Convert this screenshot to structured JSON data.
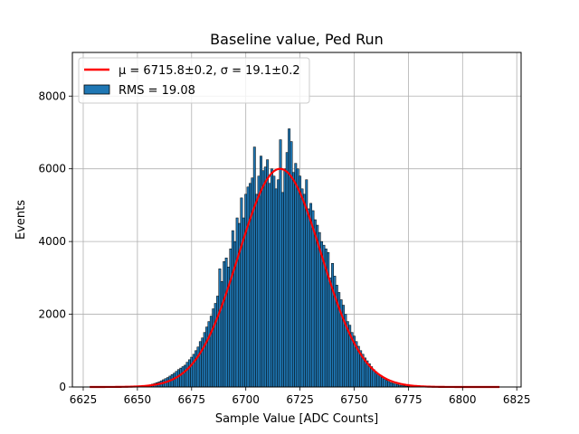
{
  "chart_data": {
    "type": "bar",
    "title": "Baseline value, Ped Run",
    "xlabel": "Sample Value [ADC Counts]",
    "ylabel": "Events",
    "xlim": [
      6620,
      6827
    ],
    "ylim": [
      0,
      9200
    ],
    "xticks": [
      6625,
      6650,
      6675,
      6700,
      6725,
      6750,
      6775,
      6800,
      6825
    ],
    "yticks": [
      0,
      2000,
      4000,
      6000,
      8000
    ],
    "grid": true,
    "legend": {
      "placement": "top-left",
      "entries": [
        {
          "label": "μ = 6715.8±0.2, σ = 19.1±0.2",
          "color": "#ff0000",
          "kind": "line"
        },
        {
          "label": "RMS = 19.08",
          "color": "#1f77b4",
          "kind": "patch"
        }
      ]
    },
    "histogram": {
      "color": "#1f77b4",
      "edge_color": "#000000",
      "bin_width": 1,
      "x": [
        6650,
        6651,
        6652,
        6653,
        6654,
        6655,
        6656,
        6657,
        6658,
        6659,
        6660,
        6661,
        6662,
        6663,
        6664,
        6665,
        6666,
        6667,
        6668,
        6669,
        6670,
        6671,
        6672,
        6673,
        6674,
        6675,
        6676,
        6677,
        6678,
        6679,
        6680,
        6681,
        6682,
        6683,
        6684,
        6685,
        6686,
        6687,
        6688,
        6689,
        6690,
        6691,
        6692,
        6693,
        6694,
        6695,
        6696,
        6697,
        6698,
        6699,
        6700,
        6701,
        6702,
        6703,
        6704,
        6705,
        6706,
        6707,
        6708,
        6709,
        6710,
        6711,
        6712,
        6713,
        6714,
        6715,
        6716,
        6717,
        6718,
        6719,
        6720,
        6721,
        6722,
        6723,
        6724,
        6725,
        6726,
        6727,
        6728,
        6729,
        6730,
        6731,
        6732,
        6733,
        6734,
        6735,
        6736,
        6737,
        6738,
        6739,
        6740,
        6741,
        6742,
        6743,
        6744,
        6745,
        6746,
        6747,
        6748,
        6749,
        6750,
        6751,
        6752,
        6753,
        6754,
        6755,
        6756,
        6757,
        6758,
        6759,
        6760,
        6761,
        6762,
        6763,
        6764,
        6765,
        6766,
        6767,
        6768,
        6769,
        6770,
        6771,
        6772,
        6773,
        6774,
        6775,
        6776,
        6777,
        6778,
        6779,
        6780
      ],
      "values": [
        15,
        20,
        25,
        35,
        40,
        50,
        60,
        80,
        100,
        120,
        140,
        170,
        200,
        230,
        260,
        300,
        340,
        380,
        430,
        480,
        520,
        560,
        600,
        680,
        750,
        820,
        900,
        1000,
        1100,
        1250,
        1350,
        1500,
        1650,
        1800,
        1950,
        2150,
        2300,
        2500,
        3250,
        2900,
        3450,
        3550,
        3300,
        3800,
        4300,
        4000,
        4650,
        4500,
        5200,
        4650,
        5300,
        5500,
        5600,
        5750,
        6600,
        5300,
        5800,
        6350,
        5950,
        6050,
        6250,
        5600,
        6000,
        5800,
        5450,
        5700,
        6800,
        5350,
        6000,
        6450,
        7100,
        6750,
        5900,
        6150,
        6000,
        5800,
        5450,
        5300,
        5700,
        4900,
        5050,
        4850,
        4600,
        4450,
        4250,
        4000,
        3900,
        3800,
        3700,
        3000,
        3400,
        3050,
        2800,
        2600,
        2400,
        2250,
        2000,
        1800,
        1700,
        1500,
        1400,
        1250,
        1120,
        1000,
        900,
        800,
        720,
        640,
        560,
        480,
        420,
        360,
        310,
        260,
        220,
        180,
        150,
        120,
        100,
        80,
        65,
        50,
        40,
        30,
        25,
        18,
        12,
        9,
        6,
        4,
        2
      ]
    },
    "fit": {
      "mu": 6715.8,
      "sigma": 19.1,
      "amplitude": 6000,
      "x_range": [
        6628,
        6817
      ],
      "color": "#ff0000"
    }
  }
}
